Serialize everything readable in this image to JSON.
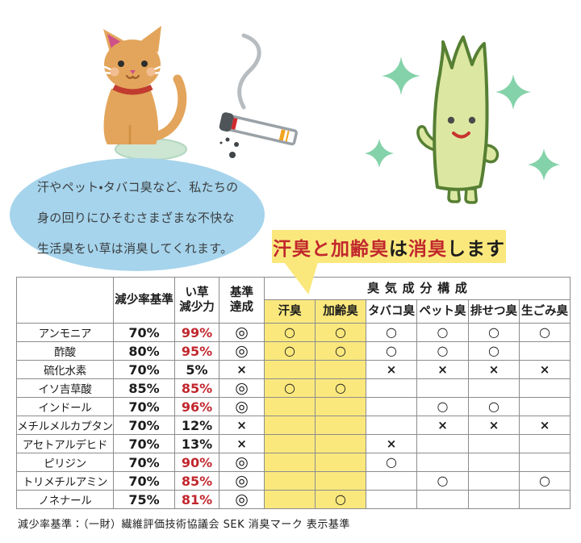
{
  "bubble": {
    "lines": [
      "汗やペット・タバコ臭など、私たちの",
      "身の回りにひそむさまざまな不快な",
      "生活臭をい草は消臭してくれます。"
    ]
  },
  "title": {
    "segments": [
      {
        "text": "汗臭と加齢臭",
        "color": "red"
      },
      {
        "text": "は",
        "color": "black"
      },
      {
        "text": "消臭",
        "color": "red"
      },
      {
        "text": "します",
        "color": "black"
      }
    ]
  },
  "table": {
    "headers": {
      "corner": "",
      "standard": "減少率基準",
      "igusa": "い草\n減少力",
      "achieve": "基準\n達成",
      "odor_group": "臭気成分構成",
      "odors": [
        "汗臭",
        "加齢臭",
        "タバコ臭",
        "ペット臭",
        "排せつ臭",
        "生ごみ臭"
      ]
    },
    "rows": [
      {
        "name": "アンモニア",
        "standard": "70%",
        "igusa": "99%",
        "igusa_met": true,
        "result": "◎",
        "odors": [
          "○",
          "○",
          "○",
          "○",
          "○",
          "○"
        ]
      },
      {
        "name": "酢酸",
        "standard": "80%",
        "igusa": "95%",
        "igusa_met": true,
        "result": "◎",
        "odors": [
          "○",
          "○",
          "○",
          "○",
          "○",
          ""
        ]
      },
      {
        "name": "硫化水素",
        "standard": "70%",
        "igusa": "5%",
        "igusa_met": false,
        "result": "×",
        "odors": [
          "",
          "",
          "×",
          "×",
          "×",
          "×"
        ]
      },
      {
        "name": "イソ吉草酸",
        "standard": "85%",
        "igusa": "85%",
        "igusa_met": true,
        "result": "◎",
        "odors": [
          "○",
          "○",
          "",
          "",
          "",
          ""
        ]
      },
      {
        "name": "インドール",
        "standard": "70%",
        "igusa": "96%",
        "igusa_met": true,
        "result": "◎",
        "odors": [
          "",
          "",
          "",
          "○",
          "○",
          ""
        ]
      },
      {
        "name": "メチルメルカプタン",
        "standard": "70%",
        "igusa": "12%",
        "igusa_met": false,
        "result": "×",
        "odors": [
          "",
          "",
          "",
          "×",
          "×",
          "×"
        ]
      },
      {
        "name": "アセトアルデヒド",
        "standard": "70%",
        "igusa": "13%",
        "igusa_met": false,
        "result": "×",
        "odors": [
          "",
          "",
          "×",
          "",
          "",
          ""
        ]
      },
      {
        "name": "ピリジン",
        "standard": "70%",
        "igusa": "90%",
        "igusa_met": true,
        "result": "◎",
        "odors": [
          "",
          "",
          "○",
          "",
          "",
          ""
        ]
      },
      {
        "name": "トリメチルアミン",
        "standard": "70%",
        "igusa": "85%",
        "igusa_met": true,
        "result": "◎",
        "odors": [
          "",
          "",
          "",
          "○",
          "",
          "○"
        ]
      },
      {
        "name": "ノネナール",
        "standard": "75%",
        "igusa": "81%",
        "igusa_met": true,
        "result": "◎",
        "odors": [
          "",
          "○",
          "",
          "",
          "",
          ""
        ]
      }
    ]
  },
  "footnote": "減少率基準：（一財）繊維評価技術協議会 SEK 消臭マーク 表示基準",
  "illustrations": {
    "cat": "orange-cat-with-urine-puddle",
    "cigarette": "smoking-cigarette-with-falling-ash",
    "mascot": "igusa-rush-grass-mascot-with-sparkles"
  },
  "colors": {
    "highlight_yellow": "#fbe87d",
    "accent_red": "#c1272d",
    "bubble_blue": "#a6d4ec",
    "sparkle_green": "#84d2a9",
    "table_border": "#8c8c8c",
    "mascot_green": "#dce8a2",
    "mascot_outline": "#567f33",
    "cat_orange": "#e3a55b",
    "puddle_green": "#cde6d4",
    "collar_red": "#c13b2f",
    "ember_red": "#d2292f",
    "filter_orange": "#f0a41f"
  }
}
